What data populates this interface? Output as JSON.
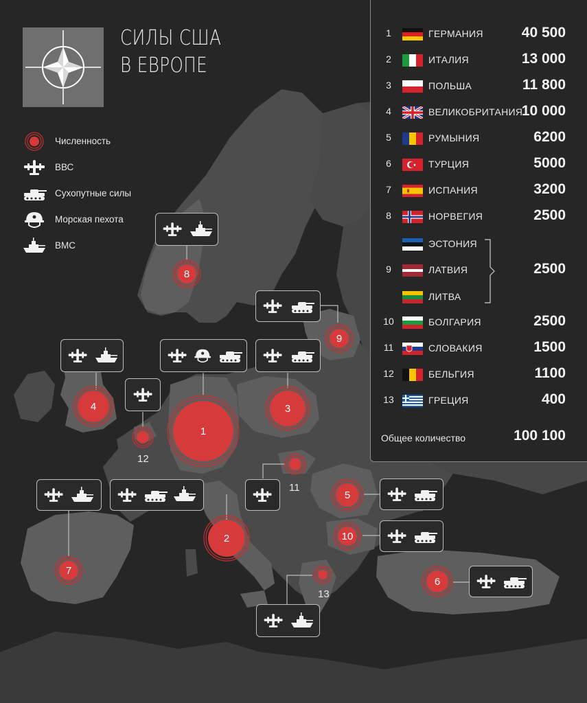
{
  "title": {
    "line1": "СИЛЫ США",
    "line2": "В ЕВРОПЕ"
  },
  "legend": [
    {
      "icon": "strength-circle-icon",
      "label": "Численность"
    },
    {
      "icon": "air-force-plane-icon",
      "label": "ВВС"
    },
    {
      "icon": "tank-icon",
      "label": "Сухопутные силы"
    },
    {
      "icon": "marine-helmet-icon",
      "label": "Морская пехота"
    },
    {
      "icon": "navy-ship-icon",
      "label": "ВМС"
    }
  ],
  "countries": [
    {
      "rank": "1",
      "flag": "germany-flag",
      "name": "ГЕРМАНИЯ",
      "value": "40 500"
    },
    {
      "rank": "2",
      "flag": "italy-flag",
      "name": "ИТАЛИЯ",
      "value": "13 000"
    },
    {
      "rank": "3",
      "flag": "poland-flag",
      "name": "ПОЛЬША",
      "value": "11 800"
    },
    {
      "rank": "4",
      "flag": "uk-flag",
      "name": "ВЕЛИКОБРИТАНИЯ",
      "value": "10 000"
    },
    {
      "rank": "5",
      "flag": "romania-flag",
      "name": "РУМЫНИЯ",
      "value": "6200"
    },
    {
      "rank": "6",
      "flag": "turkey-flag",
      "name": "ТУРЦИЯ",
      "value": "5000"
    },
    {
      "rank": "7",
      "flag": "spain-flag",
      "name": "ИСПАНИЯ",
      "value": "3200"
    },
    {
      "rank": "8",
      "flag": "norway-flag",
      "name": "НОРВЕГИЯ",
      "value": "2500"
    },
    {
      "rank": "",
      "flag": "estonia-flag",
      "name": "ЭСТОНИЯ",
      "value": ""
    },
    {
      "rank": "9",
      "flag": "latvia-flag",
      "name": "ЛАТВИЯ",
      "value": "2500"
    },
    {
      "rank": "",
      "flag": "lithuania-flag",
      "name": "ЛИТВА",
      "value": ""
    },
    {
      "rank": "10",
      "flag": "bulgaria-flag",
      "name": "БОЛГАРИЯ",
      "value": "2500"
    },
    {
      "rank": "11",
      "flag": "slovakia-flag",
      "name": "СЛОВАКИЯ",
      "value": "1500"
    },
    {
      "rank": "12",
      "flag": "belgium-flag",
      "name": "БЕЛЬГИЯ",
      "value": "1100"
    },
    {
      "rank": "13",
      "flag": "greece-flag",
      "name": "ГРЕЦИЯ",
      "value": "400"
    }
  ],
  "total": {
    "label": "Общее количество",
    "value": "100 100"
  },
  "markers": [
    {
      "num": "1",
      "label_inside": "1"
    },
    {
      "num": "2",
      "label_inside": "2"
    },
    {
      "num": "3",
      "label_inside": "3"
    },
    {
      "num": "4",
      "label_inside": "4"
    },
    {
      "num": "5",
      "label_inside": "5"
    },
    {
      "num": "6",
      "label_inside": "6"
    },
    {
      "num": "7",
      "label_inside": "7"
    },
    {
      "num": "8",
      "label_inside": "8"
    },
    {
      "num": "9",
      "label_inside": "9"
    },
    {
      "num": "10",
      "label_inside": "10"
    },
    {
      "num": "11",
      "label_outside": "11"
    },
    {
      "num": "12",
      "label_outside": "12"
    },
    {
      "num": "13",
      "label_outside": "13"
    }
  ],
  "callouts": {
    "germany": [
      "air-force-plane-icon",
      "marine-helmet-icon",
      "tank-icon"
    ],
    "italy": [
      "air-force-plane-icon",
      "tank-icon",
      "navy-ship-icon"
    ],
    "poland": [
      "air-force-plane-icon",
      "tank-icon"
    ],
    "uk": [
      "air-force-plane-icon",
      "navy-ship-icon"
    ],
    "romania": [
      "air-force-plane-icon",
      "tank-icon"
    ],
    "turkey": [
      "air-force-plane-icon",
      "tank-icon"
    ],
    "spain": [
      "air-force-plane-icon",
      "navy-ship-icon"
    ],
    "norway": [
      "air-force-plane-icon",
      "navy-ship-icon"
    ],
    "baltics": [
      "air-force-plane-icon",
      "tank-icon"
    ],
    "bulgaria": [
      "air-force-plane-icon",
      "tank-icon"
    ],
    "slovakia": [
      "air-force-plane-icon"
    ],
    "belgium": [
      "air-force-plane-icon"
    ],
    "greece": [
      "air-force-plane-icon",
      "navy-ship-icon"
    ]
  },
  "colors": {
    "background": "#262626",
    "land": "#4a4a4a",
    "land_highlight": "#5e5e5e",
    "marker": "#d63a3a",
    "marker_ring": "#c43030"
  }
}
